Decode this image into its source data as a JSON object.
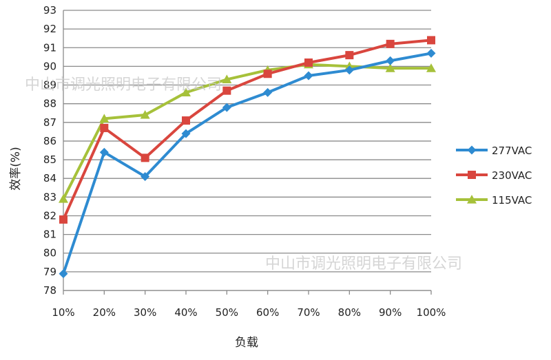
{
  "watermark": "中山市调光照明电子有限公司",
  "chart_data": {
    "type": "line",
    "title": "",
    "xlabel": "负载",
    "ylabel": "效率(%)",
    "categories": [
      "10%",
      "20%",
      "30%",
      "40%",
      "50%",
      "60%",
      "70%",
      "80%",
      "90%",
      "100%"
    ],
    "ylim": [
      78,
      93
    ],
    "ytick_step": 1,
    "grid": "horizontal",
    "legend_position": "right",
    "series": [
      {
        "name": "277VAC",
        "color": "#2e8bd1",
        "marker": "diamond",
        "values": [
          78.9,
          85.4,
          84.1,
          86.4,
          87.8,
          88.6,
          89.5,
          89.8,
          90.3,
          90.7
        ]
      },
      {
        "name": "230VAC",
        "color": "#d9463e",
        "marker": "square",
        "values": [
          81.8,
          86.7,
          85.1,
          87.1,
          88.7,
          89.6,
          90.2,
          90.6,
          91.2,
          91.4
        ]
      },
      {
        "name": "115VAC",
        "color": "#a6c13a",
        "marker": "triangle",
        "values": [
          82.9,
          87.2,
          87.4,
          88.6,
          89.3,
          89.8,
          90.1,
          90.0,
          89.9,
          89.9
        ]
      }
    ]
  }
}
